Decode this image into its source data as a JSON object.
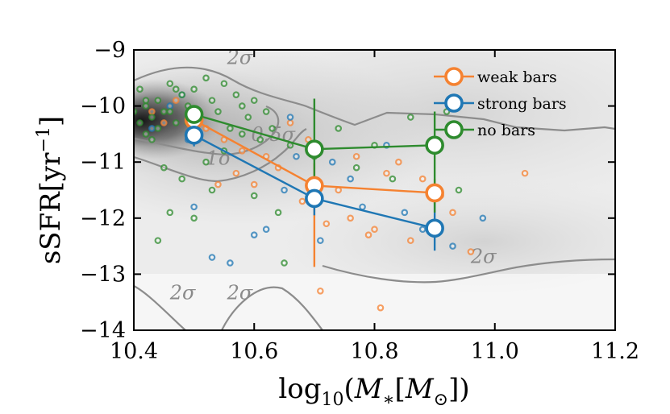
{
  "chart_data": {
    "type": "scatter",
    "title": "",
    "xlabel": "log10(M*[M⊙])",
    "ylabel": "sSFR[yr⁻¹]",
    "xlim": [
      10.4,
      11.2
    ],
    "ylim": [
      -14,
      -9
    ],
    "x_ticks": [
      10.4,
      10.6,
      10.8,
      11.0,
      11.2
    ],
    "x_tick_labels": [
      "10.4",
      "10.6",
      "10.8",
      "11.0",
      "11.2"
    ],
    "y_ticks": [
      -14,
      -13,
      -12,
      -11,
      -10,
      -9
    ],
    "y_tick_labels": [
      "−14",
      "−13",
      "−12",
      "−11",
      "−10",
      "−9"
    ],
    "legend_position": "top-right",
    "colors": {
      "weak": "#f58231",
      "strong": "#1f77b4",
      "none": "#2e8b2e",
      "contour": "#8c8c8c"
    },
    "series": [
      {
        "name": "weak bars",
        "key": "weak",
        "x": [
          10.5,
          10.7,
          10.9
        ],
        "y": [
          -10.25,
          -11.42,
          -11.55
        ],
        "err_low": [
          0.15,
          1.45,
          0.2
        ],
        "err_high": [
          0.15,
          0.4,
          0.25
        ]
      },
      {
        "name": "strong bars",
        "key": "strong",
        "x": [
          10.5,
          10.7,
          10.9
        ],
        "y": [
          -10.52,
          -11.65,
          -12.18
        ],
        "err_low": [
          0.2,
          0.3,
          0.4
        ],
        "err_high": [
          0.2,
          0.3,
          0.5
        ]
      },
      {
        "name": "no bars",
        "key": "none",
        "x": [
          10.5,
          10.7,
          10.9
        ],
        "y": [
          -10.15,
          -10.77,
          -10.7
        ],
        "err_low": [
          0.15,
          0.65,
          1.2
        ],
        "err_high": [
          0.15,
          0.9,
          0.6
        ]
      }
    ],
    "scatter_points": {
      "weak": [
        [
          10.43,
          -10.1
        ],
        [
          10.45,
          -10.3
        ],
        [
          10.47,
          -9.9
        ],
        [
          10.52,
          -10.4
        ],
        [
          10.55,
          -10.6
        ],
        [
          10.58,
          -10.8
        ],
        [
          10.6,
          -11.4
        ],
        [
          10.62,
          -10.9
        ],
        [
          10.64,
          -11.1
        ],
        [
          10.66,
          -10.3
        ],
        [
          10.68,
          -11.7
        ],
        [
          10.71,
          -13.3
        ],
        [
          10.72,
          -12.1
        ],
        [
          10.74,
          -11.5
        ],
        [
          10.76,
          -12.0
        ],
        [
          10.77,
          -10.9
        ],
        [
          10.79,
          -12.3
        ],
        [
          10.8,
          -12.2
        ],
        [
          10.81,
          -13.6
        ],
        [
          10.82,
          -11.2
        ],
        [
          10.84,
          -11.0
        ],
        [
          10.86,
          -12.4
        ],
        [
          10.88,
          -11.3
        ],
        [
          10.91,
          -11.6
        ],
        [
          10.93,
          -11.9
        ],
        [
          10.96,
          -12.6
        ],
        [
          11.05,
          -11.2
        ],
        [
          10.54,
          -11.4
        ],
        [
          10.69,
          -10.6
        ],
        [
          10.57,
          -11.2
        ]
      ],
      "strong": [
        [
          10.43,
          -10.4
        ],
        [
          10.46,
          -10.0
        ],
        [
          10.48,
          -9.8
        ],
        [
          10.5,
          -11.8
        ],
        [
          10.53,
          -12.7
        ],
        [
          10.56,
          -12.8
        ],
        [
          10.6,
          -12.3
        ],
        [
          10.62,
          -12.2
        ],
        [
          10.65,
          -11.5
        ],
        [
          10.67,
          -10.9
        ],
        [
          10.73,
          -11.0
        ],
        [
          10.76,
          -11.3
        ],
        [
          10.78,
          -11.8
        ],
        [
          10.82,
          -10.7
        ],
        [
          10.85,
          -11.9
        ],
        [
          10.88,
          -12.2
        ],
        [
          10.9,
          -12.1
        ],
        [
          10.93,
          -12.5
        ],
        [
          10.98,
          -12.0
        ],
        [
          10.66,
          -10.2
        ],
        [
          10.49,
          -10.6
        ],
        [
          10.71,
          -12.4
        ]
      ],
      "none": [
        [
          10.41,
          -9.7
        ],
        [
          10.42,
          -10.0
        ],
        [
          10.43,
          -10.2
        ],
        [
          10.44,
          -9.9
        ],
        [
          10.45,
          -10.1
        ],
        [
          10.46,
          -9.6
        ],
        [
          10.47,
          -10.3
        ],
        [
          10.48,
          -9.8
        ],
        [
          10.49,
          -10.0
        ],
        [
          10.5,
          -9.7
        ],
        [
          10.51,
          -10.2
        ],
        [
          10.52,
          -9.5
        ],
        [
          10.53,
          -9.9
        ],
        [
          10.54,
          -10.1
        ],
        [
          10.55,
          -9.6
        ],
        [
          10.56,
          -10.4
        ],
        [
          10.57,
          -9.8
        ],
        [
          10.58,
          -10.0
        ],
        [
          10.59,
          -10.2
        ],
        [
          10.6,
          -9.9
        ],
        [
          10.62,
          -10.1
        ],
        [
          10.63,
          -10.4
        ],
        [
          10.41,
          -10.3
        ],
        [
          10.42,
          -9.9
        ],
        [
          10.44,
          -10.4
        ],
        [
          10.46,
          -10.1
        ],
        [
          10.47,
          -9.7
        ],
        [
          10.49,
          -10.3
        ],
        [
          10.43,
          -10.6
        ],
        [
          10.45,
          -11.1
        ],
        [
          10.48,
          -11.3
        ],
        [
          10.44,
          -12.4
        ],
        [
          10.46,
          -11.9
        ],
        [
          10.52,
          -11.0
        ],
        [
          10.55,
          -10.8
        ],
        [
          10.6,
          -11.6
        ],
        [
          10.64,
          -11.9
        ],
        [
          10.65,
          -12.8
        ],
        [
          10.7,
          -10.9
        ],
        [
          10.74,
          -10.4
        ],
        [
          10.77,
          -11.1
        ],
        [
          10.8,
          -10.7
        ],
        [
          10.83,
          -11.3
        ],
        [
          10.86,
          -10.2
        ],
        [
          10.9,
          -10.6
        ],
        [
          10.92,
          -10.1
        ],
        [
          10.94,
          -11.5
        ],
        [
          10.66,
          -10.7
        ],
        [
          10.61,
          -10.6
        ],
        [
          10.58,
          -10.5
        ],
        [
          10.53,
          -11.5
        ],
        [
          10.5,
          -12.0
        ],
        [
          10.42,
          -10.5
        ],
        [
          10.4,
          -10.1
        ]
      ]
    },
    "contour_labels": [
      {
        "text": "2σ",
        "x": 10.555,
        "y": -9.25
      },
      {
        "text": "0.5σ",
        "x": 10.595,
        "y": -10.62
      },
      {
        "text": "1σ",
        "x": 10.52,
        "y": -11.05
      },
      {
        "text": "2σ",
        "x": 10.46,
        "y": -13.45
      },
      {
        "text": "2σ",
        "x": 10.555,
        "y": -13.45
      },
      {
        "text": "2σ",
        "x": 10.96,
        "y": -12.8
      }
    ]
  }
}
